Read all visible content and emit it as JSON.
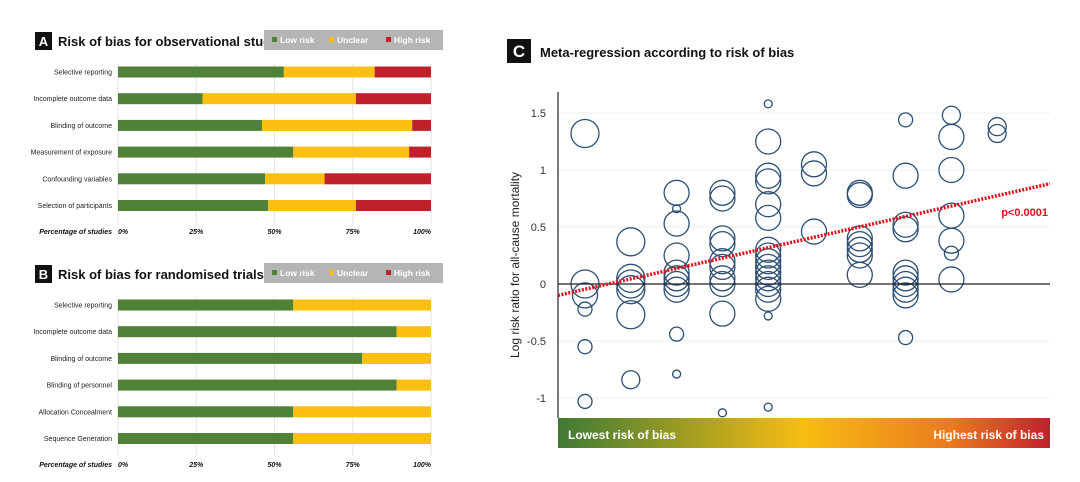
{
  "colors": {
    "low": "#4f8137",
    "unclear": "#fbbf10",
    "high": "#c0202a",
    "circle": "#2d4f74",
    "regression": "#e0101c",
    "legend_bg": "#b5b5b5"
  },
  "chart_data": [
    {
      "type": "bar",
      "stacked": true,
      "orientation": "horizontal",
      "letter": "A",
      "title": "Risk of bias for observational studies",
      "legend": [
        "Low risk",
        "Unclear",
        "High risk"
      ],
      "legend_placement": "top-right",
      "xlabel": "Percentage of studies",
      "xticks": [
        "0%",
        "25%",
        "50%",
        "75%",
        "100%"
      ],
      "xlim": [
        0,
        100
      ],
      "categories": [
        "Selective reporting",
        "Incomplete outcome data",
        "Blinding of outcome",
        "Measurement of exposure",
        "Confounding variables",
        "Selection of participants"
      ],
      "series": [
        {
          "name": "Low risk",
          "values": [
            53,
            27,
            46,
            56,
            47,
            48
          ]
        },
        {
          "name": "Unclear",
          "values": [
            29,
            49,
            48,
            37,
            19,
            28
          ]
        },
        {
          "name": "High risk",
          "values": [
            18,
            24,
            6,
            7,
            34,
            24
          ]
        }
      ]
    },
    {
      "type": "bar",
      "stacked": true,
      "orientation": "horizontal",
      "letter": "B",
      "title": "Risk of bias for randomised trials",
      "legend": [
        "Low risk",
        "Unclear",
        "High risk"
      ],
      "legend_placement": "top-right",
      "xlabel": "Percentage of studies",
      "xticks": [
        "0%",
        "25%",
        "50%",
        "75%",
        "100%"
      ],
      "xlim": [
        0,
        100
      ],
      "categories": [
        "Selective reporting",
        "Incomplete outcome data",
        "Blinding of outcome",
        "Blinding of personnel",
        "Allocation Concealment",
        "Sequence Generation"
      ],
      "series": [
        {
          "name": "Low risk",
          "values": [
            56,
            89,
            78,
            89,
            56,
            56
          ]
        },
        {
          "name": "Unclear",
          "values": [
            44,
            11,
            22,
            11,
            44,
            44
          ]
        },
        {
          "name": "High risk",
          "values": [
            0,
            0,
            0,
            0,
            0,
            0
          ]
        }
      ]
    },
    {
      "type": "scatter",
      "letter": "C",
      "title": "Meta-regression according to risk of bias",
      "ylabel": "Log risk ratio for all-cause mortality",
      "yticks": [
        "1.5",
        "1",
        "0.5",
        "0",
        "-0.5",
        "-1"
      ],
      "ytick_values": [
        1.5,
        1,
        0.5,
        0,
        -0.5,
        -1
      ],
      "ylim": [
        -1.3,
        1.7
      ],
      "xlim": [
        0.4,
        11.5
      ],
      "x_gradient_labels": {
        "low": "Lowest risk of bias",
        "high": "Highest risk of bias"
      },
      "grid": true,
      "annotation": "p<0.0001",
      "regression": {
        "y_at_left": -0.1,
        "y_at_right": 0.88
      },
      "bubble_size_scale": "relative weight 1-4",
      "points": [
        [
          1,
          1.32,
          4
        ],
        [
          1,
          0.0,
          4
        ],
        [
          1,
          -0.1,
          3
        ],
        [
          1,
          -0.22,
          2
        ],
        [
          1,
          -0.55,
          2
        ],
        [
          1,
          -1.03,
          2
        ],
        [
          2,
          0.37,
          4
        ],
        [
          2,
          0.05,
          4
        ],
        [
          2,
          0.0,
          4
        ],
        [
          2,
          -0.05,
          4
        ],
        [
          2,
          -0.27,
          4
        ],
        [
          2,
          -0.84,
          2.5
        ],
        [
          3,
          0.8,
          3
        ],
        [
          3,
          0.66,
          1
        ],
        [
          3,
          0.53,
          3
        ],
        [
          3,
          0.25,
          3
        ],
        [
          3,
          0.1,
          3
        ],
        [
          3,
          0.05,
          3
        ],
        [
          3,
          0.0,
          3
        ],
        [
          3,
          -0.05,
          3
        ],
        [
          3,
          -0.44,
          2
        ],
        [
          3,
          -0.79,
          1
        ],
        [
          4,
          0.8,
          3
        ],
        [
          4,
          0.75,
          3
        ],
        [
          4,
          0.4,
          3
        ],
        [
          4,
          0.35,
          3
        ],
        [
          4,
          0.2,
          3
        ],
        [
          4,
          0.15,
          3
        ],
        [
          4,
          0.05,
          3
        ],
        [
          4,
          0.0,
          3
        ],
        [
          4,
          -0.26,
          3
        ],
        [
          4,
          -1.13,
          1
        ],
        [
          5,
          1.58,
          1
        ],
        [
          5,
          1.25,
          3
        ],
        [
          5,
          0.95,
          3
        ],
        [
          5,
          0.9,
          3
        ],
        [
          5,
          0.7,
          3
        ],
        [
          5,
          0.58,
          3
        ],
        [
          5,
          0.3,
          3
        ],
        [
          5,
          0.25,
          3
        ],
        [
          5,
          0.2,
          3
        ],
        [
          5,
          0.15,
          3
        ],
        [
          5,
          0.1,
          3
        ],
        [
          5,
          0.05,
          3
        ],
        [
          5,
          0.0,
          3
        ],
        [
          5,
          -0.05,
          3
        ],
        [
          5,
          -0.13,
          3
        ],
        [
          5,
          -0.28,
          1
        ],
        [
          5,
          -1.08,
          1
        ],
        [
          6,
          1.05,
          3
        ],
        [
          6,
          0.97,
          3
        ],
        [
          6,
          0.46,
          3
        ],
        [
          7,
          0.8,
          3
        ],
        [
          7,
          0.78,
          3
        ],
        [
          7,
          0.4,
          3
        ],
        [
          7,
          0.35,
          3
        ],
        [
          7,
          0.3,
          3
        ],
        [
          7,
          0.25,
          3
        ],
        [
          7,
          0.08,
          3
        ],
        [
          8,
          1.44,
          2
        ],
        [
          8,
          0.95,
          3
        ],
        [
          8,
          0.52,
          3
        ],
        [
          8,
          0.48,
          3
        ],
        [
          8,
          0.1,
          3
        ],
        [
          8,
          0.05,
          3
        ],
        [
          8,
          0.0,
          3
        ],
        [
          8,
          -0.05,
          3
        ],
        [
          8,
          -0.1,
          3
        ],
        [
          8,
          -0.47,
          2
        ],
        [
          9,
          1.48,
          2.5
        ],
        [
          9,
          1.29,
          3
        ],
        [
          9,
          1.0,
          3
        ],
        [
          9,
          0.6,
          3
        ],
        [
          9,
          0.38,
          3
        ],
        [
          9,
          0.27,
          2
        ],
        [
          9,
          0.04,
          3
        ],
        [
          10,
          1.38,
          2.5
        ],
        [
          10,
          1.32,
          2.5
        ]
      ]
    }
  ]
}
